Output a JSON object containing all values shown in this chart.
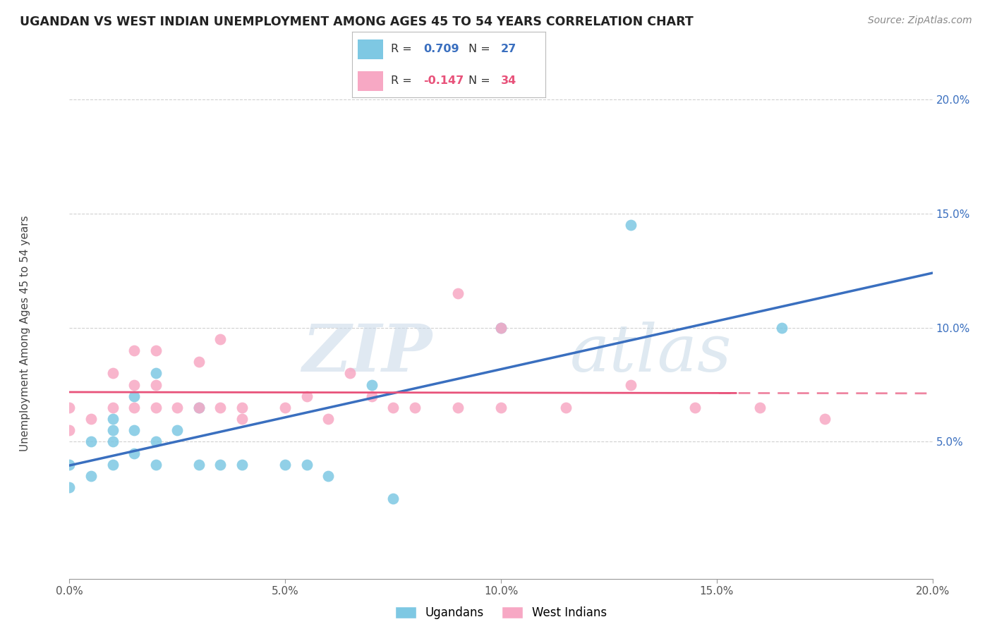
{
  "title": "UGANDAN VS WEST INDIAN UNEMPLOYMENT AMONG AGES 45 TO 54 YEARS CORRELATION CHART",
  "source": "Source: ZipAtlas.com",
  "ylabel": "Unemployment Among Ages 45 to 54 years",
  "xlim": [
    0.0,
    0.2
  ],
  "ylim": [
    -0.01,
    0.205
  ],
  "xticks": [
    0.0,
    0.05,
    0.1,
    0.15,
    0.2
  ],
  "yticks": [
    0.05,
    0.1,
    0.15,
    0.2
  ],
  "xticklabels": [
    "0.0%",
    "5.0%",
    "10.0%",
    "15.0%",
    "20.0%"
  ],
  "yticklabels": [
    "5.0%",
    "10.0%",
    "15.0%",
    "20.0%"
  ],
  "ugandan_R": 0.709,
  "ugandan_N": 27,
  "westindian_R": -0.147,
  "westindian_N": 34,
  "ugandan_color": "#7ec8e3",
  "westindian_color": "#f7a8c4",
  "ugandan_line_color": "#3a6fbf",
  "westindian_line_color": "#e8527a",
  "watermark_zip": "ZIP",
  "watermark_atlas": "atlas",
  "ugandan_x": [
    0.0,
    0.0,
    0.005,
    0.005,
    0.01,
    0.01,
    0.01,
    0.01,
    0.015,
    0.015,
    0.015,
    0.02,
    0.02,
    0.02,
    0.025,
    0.03,
    0.03,
    0.035,
    0.04,
    0.05,
    0.055,
    0.06,
    0.07,
    0.075,
    0.1,
    0.13,
    0.165
  ],
  "ugandan_y": [
    0.03,
    0.04,
    0.035,
    0.05,
    0.04,
    0.05,
    0.055,
    0.06,
    0.045,
    0.055,
    0.07,
    0.04,
    0.05,
    0.08,
    0.055,
    0.04,
    0.065,
    0.04,
    0.04,
    0.04,
    0.04,
    0.035,
    0.075,
    0.025,
    0.1,
    0.145,
    0.1
  ],
  "westindian_x": [
    0.0,
    0.0,
    0.005,
    0.01,
    0.01,
    0.015,
    0.015,
    0.015,
    0.02,
    0.02,
    0.02,
    0.025,
    0.03,
    0.03,
    0.035,
    0.035,
    0.04,
    0.04,
    0.05,
    0.055,
    0.06,
    0.065,
    0.07,
    0.075,
    0.08,
    0.09,
    0.09,
    0.1,
    0.1,
    0.115,
    0.13,
    0.145,
    0.16,
    0.175
  ],
  "westindian_y": [
    0.055,
    0.065,
    0.06,
    0.065,
    0.08,
    0.065,
    0.075,
    0.09,
    0.065,
    0.075,
    0.09,
    0.065,
    0.065,
    0.085,
    0.065,
    0.095,
    0.06,
    0.065,
    0.065,
    0.07,
    0.06,
    0.08,
    0.07,
    0.065,
    0.065,
    0.065,
    0.115,
    0.065,
    0.1,
    0.065,
    0.075,
    0.065,
    0.065,
    0.06
  ]
}
